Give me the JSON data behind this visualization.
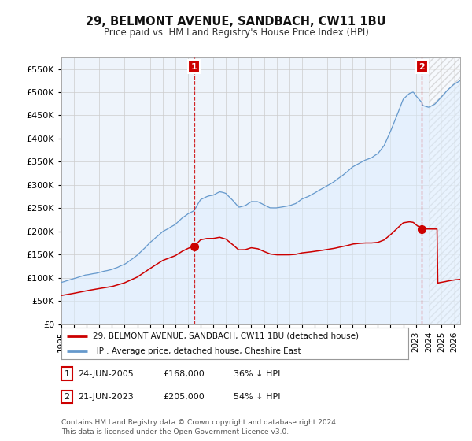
{
  "title": "29, BELMONT AVENUE, SANDBACH, CW11 1BU",
  "subtitle": "Price paid vs. HM Land Registry's House Price Index (HPI)",
  "ytick_values": [
    0,
    50000,
    100000,
    150000,
    200000,
    250000,
    300000,
    350000,
    400000,
    450000,
    500000,
    550000
  ],
  "ylim": [
    0,
    575000
  ],
  "xlim_start": 1995.0,
  "xlim_end": 2026.5,
  "xtick_years": [
    1995,
    1996,
    1997,
    1998,
    1999,
    2000,
    2001,
    2002,
    2003,
    2004,
    2005,
    2006,
    2007,
    2008,
    2009,
    2010,
    2011,
    2012,
    2013,
    2014,
    2015,
    2016,
    2017,
    2018,
    2019,
    2020,
    2021,
    2022,
    2023,
    2024,
    2025,
    2026
  ],
  "transaction1": {
    "date": "24-JUN-2005",
    "price": 168000,
    "label": "1",
    "x": 2005.48
  },
  "transaction2": {
    "date": "21-JUN-2023",
    "price": 205000,
    "label": "2",
    "x": 2023.47
  },
  "legend_line1": "29, BELMONT AVENUE, SANDBACH, CW11 1BU (detached house)",
  "legend_line2": "HPI: Average price, detached house, Cheshire East",
  "footnote": "Contains HM Land Registry data © Crown copyright and database right 2024.\nThis data is licensed under the Open Government Licence v3.0.",
  "red_color": "#cc0000",
  "blue_color": "#6699cc",
  "blue_fill": "#ddeeff",
  "grid_color": "#cccccc",
  "background_color": "#ffffff",
  "plot_bg_color": "#eef4fb",
  "table_row1": [
    "1",
    "24-JUN-2005",
    "£168,000",
    "36% ↓ HPI"
  ],
  "table_row2": [
    "2",
    "21-JUN-2023",
    "£205,000",
    "54% ↓ HPI"
  ]
}
